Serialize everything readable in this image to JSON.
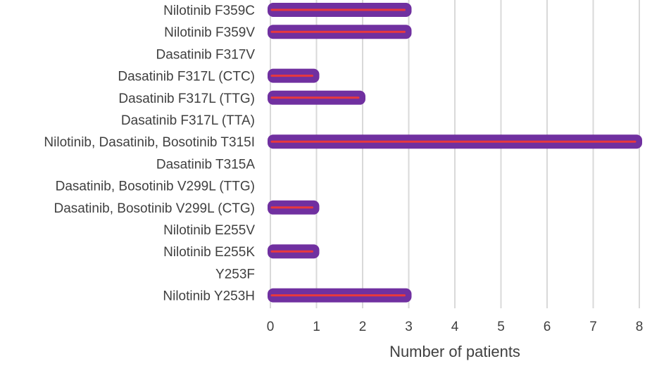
{
  "chart_data": {
    "type": "bar",
    "orientation": "horizontal",
    "categories": [
      "Nilotinib  F359C",
      "Nilotinib  F359V",
      "Dasatinib  F317V",
      "Dasatinib  F317L (CTC)",
      "Dasatinib  F317L (TTG)",
      "Dasatinib  F317L (TTA)",
      "Nilotinib, Dasatinib, Bosotinib  T315I",
      "Dasatinib  T315A",
      "Dasatinib, Bosotinib  V299L (TTG)",
      "Dasatinib, Bosotinib  V299L (CTG)",
      "Nilotinib  E255V",
      "Nilotinib  E255K",
      "Y253F",
      "Nilotinib  Y253H"
    ],
    "values": [
      3,
      3,
      0,
      1,
      2,
      0,
      8,
      0,
      0,
      1,
      0,
      1,
      0,
      3
    ],
    "xlabel": "Number of patients",
    "xlim": [
      0,
      8
    ],
    "xticks": [
      "0",
      "1",
      "2",
      "3",
      "4",
      "5",
      "6",
      "7",
      "8"
    ],
    "grid": "vertical",
    "colors": {
      "bar_outline": "#7030A0",
      "bar_inner_line": "#E8383D",
      "grid": "#d9d9d9",
      "text": "#404040"
    }
  }
}
